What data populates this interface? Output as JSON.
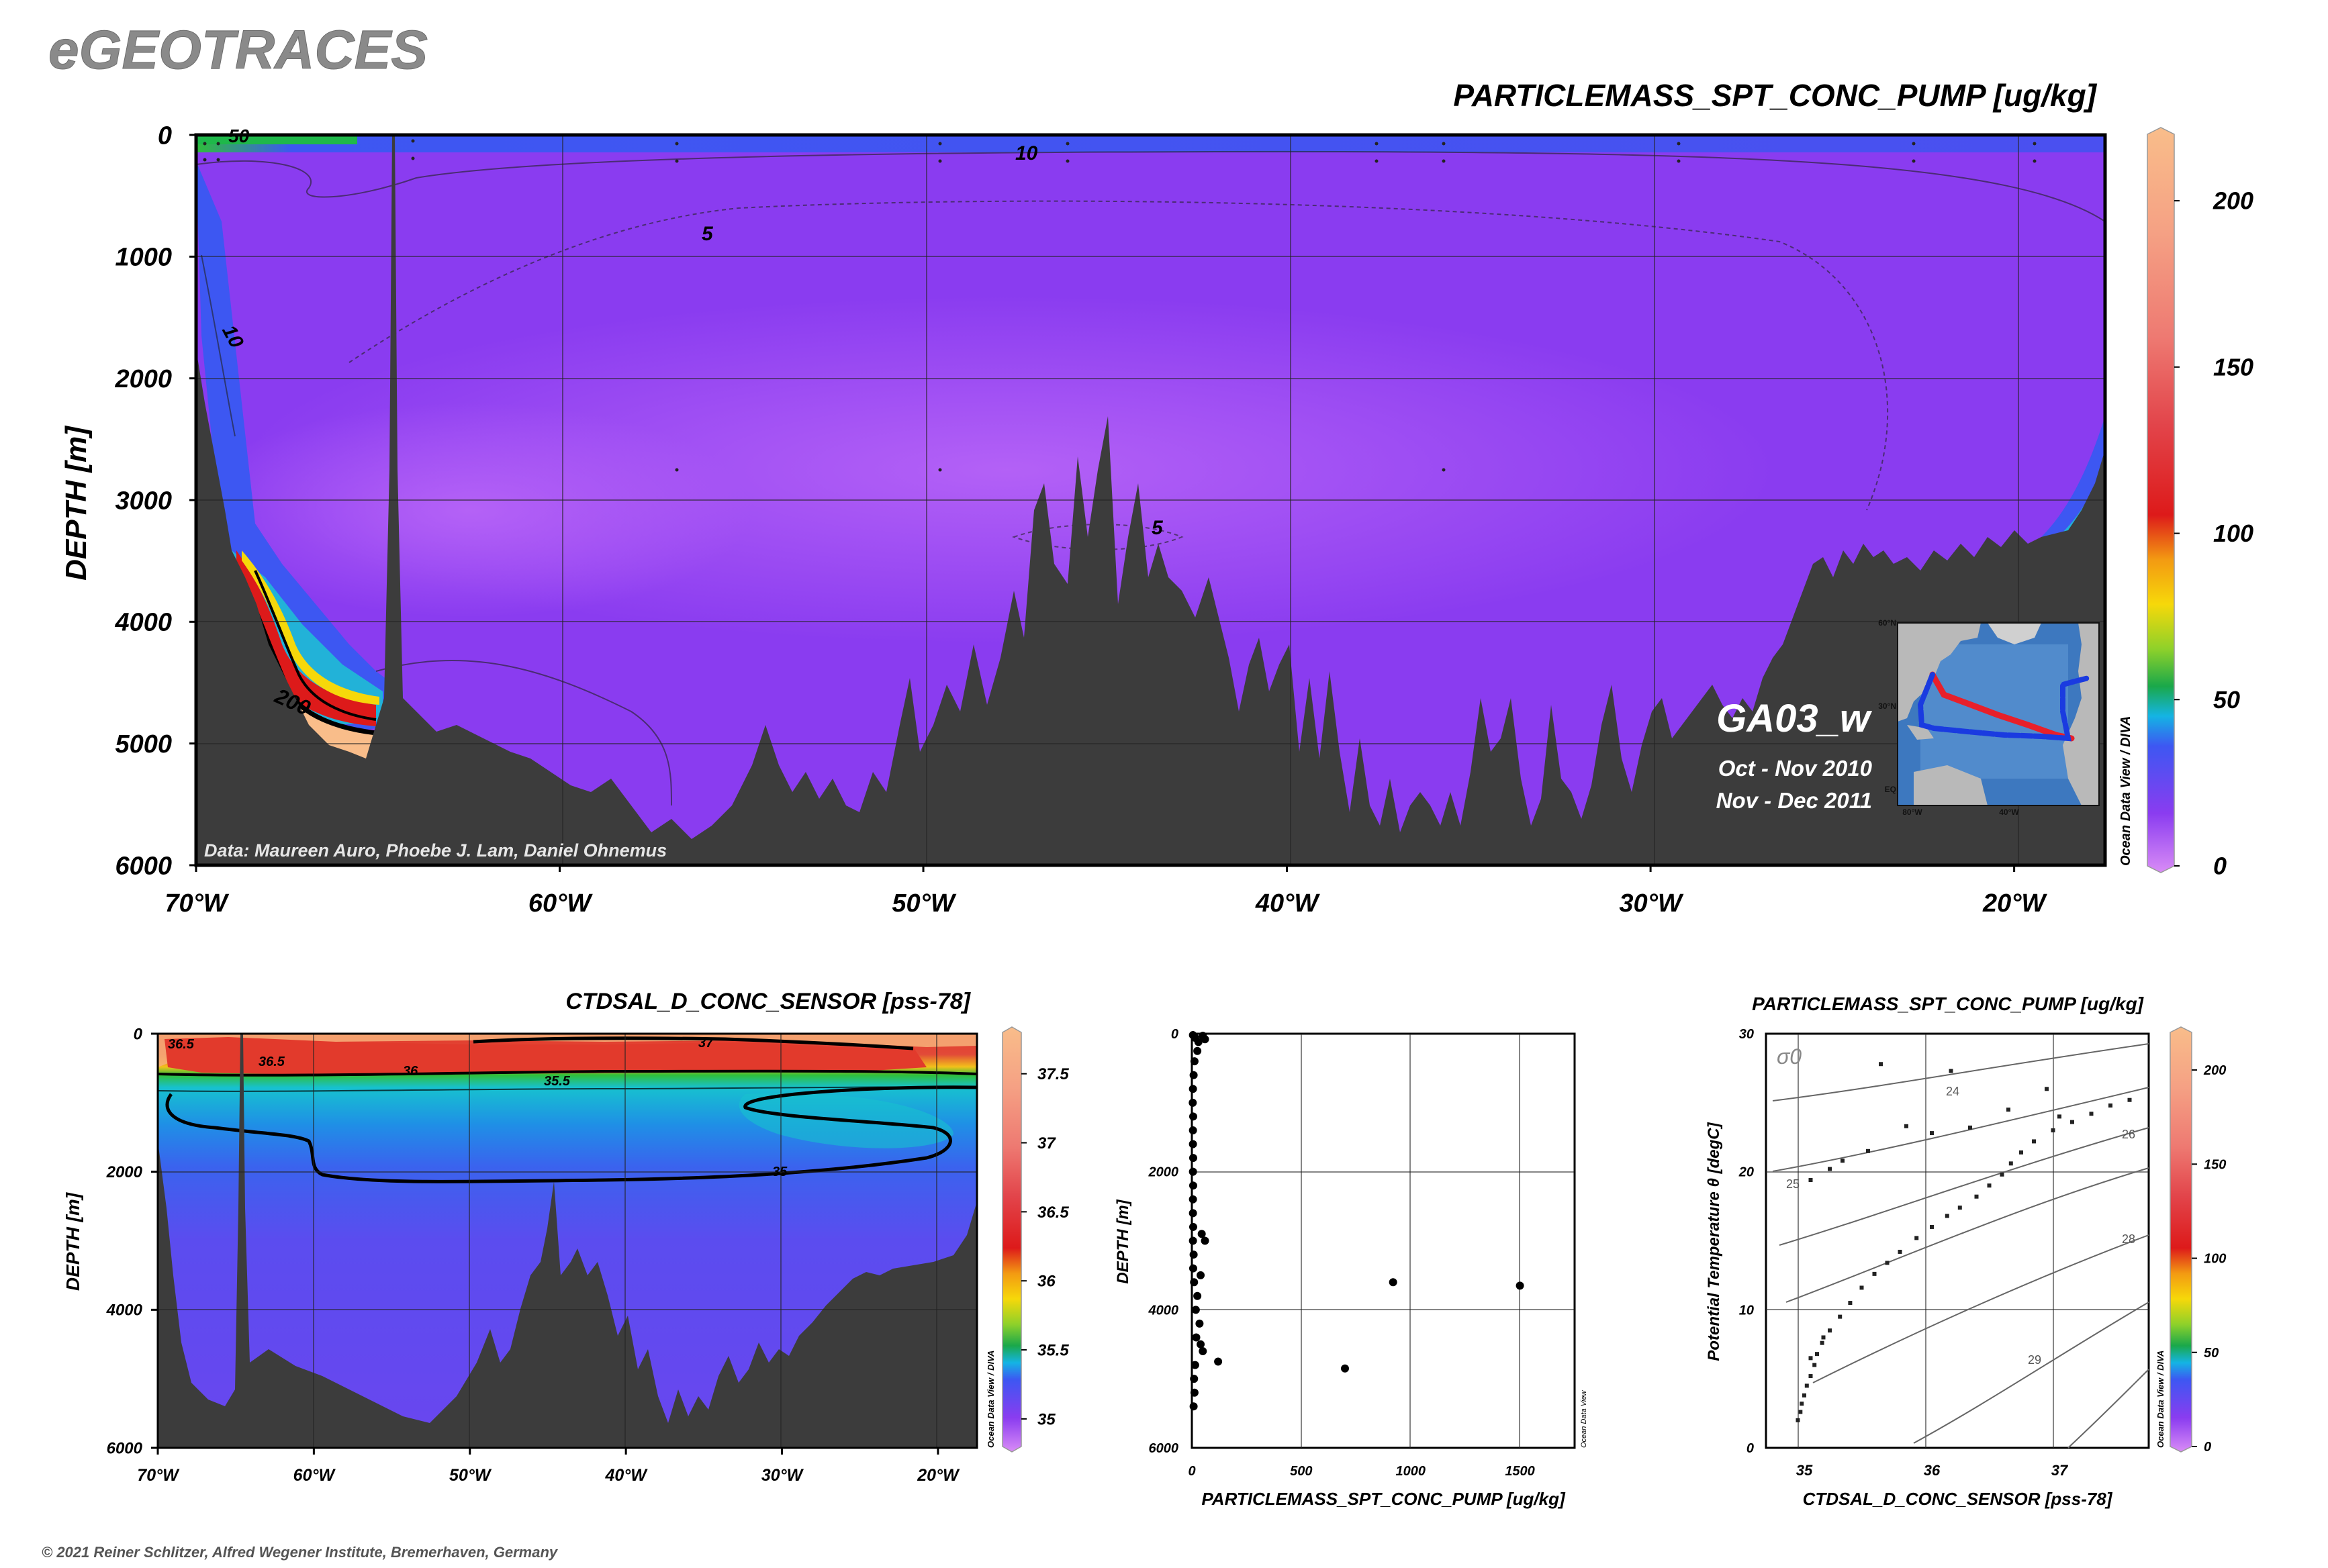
{
  "app_title": "eGEOTRACES",
  "copyright": "© 2021 Reiner Schlitzer, Alfred Wegener Institute, Bremerhaven, Germany",
  "watermark": "Ocean Data View / DIVA",
  "watermark_short": "Ocean Data View",
  "colors": {
    "land": "#3c3c3c",
    "ocean_base": "#8a3cf0",
    "ocean_light": "#a24ff5",
    "cruise_red": "#e8202a",
    "cruise_blue": "#1a3be0"
  },
  "chart_data": [
    {
      "type": "heatmap",
      "title": "PARTICLEMASS_SPT_CONC_PUMP [ug/kg]",
      "xlabel": "",
      "ylabel": "DEPTH [m]",
      "x_ticks": [
        "70°W",
        "60°W",
        "50°W",
        "40°W",
        "30°W",
        "20°W"
      ],
      "x_tick_values": [
        -70,
        -60,
        -50,
        -40,
        -30,
        -20
      ],
      "xlim": [
        -70,
        -17.5
      ],
      "y_ticks": [
        "0",
        "1000",
        "2000",
        "3000",
        "4000",
        "5000",
        "6000"
      ],
      "y_tick_values": [
        0,
        1000,
        2000,
        3000,
        4000,
        5000,
        6000
      ],
      "ylim": [
        6000,
        0
      ],
      "colorbar": {
        "ticks": [
          "0",
          "50",
          "100",
          "150",
          "200"
        ],
        "tick_values": [
          0,
          50,
          100,
          150,
          200
        ],
        "range": [
          0,
          220
        ]
      },
      "contour_labels": [
        "50",
        "10",
        "5",
        "10",
        "5",
        "200"
      ],
      "credit": "Data: Maureen Auro, Phoebe J. Lam, Daniel Ohnemus",
      "section_name": "GA03_w",
      "dates": [
        "Oct - Nov 2010",
        "Nov - Dec 2011"
      ],
      "inset_map": {
        "lat_labels": [
          "60°N",
          "30°N",
          "EQ"
        ],
        "lon_labels": [
          "80°W",
          "40°W"
        ]
      }
    },
    {
      "type": "heatmap",
      "title": "CTDSAL_D_CONC_SENSOR [pss-78]",
      "ylabel": "DEPTH [m]",
      "x_ticks": [
        "70°W",
        "60°W",
        "50°W",
        "40°W",
        "30°W",
        "20°W"
      ],
      "x_tick_values": [
        -70,
        -60,
        -50,
        -40,
        -30,
        -20
      ],
      "xlim": [
        -70,
        -17.5
      ],
      "y_ticks": [
        "0",
        "2000",
        "4000",
        "6000"
      ],
      "y_tick_values": [
        0,
        2000,
        4000,
        6000
      ],
      "ylim": [
        6000,
        0
      ],
      "colorbar": {
        "ticks": [
          "35",
          "35.5",
          "36",
          "36.5",
          "37",
          "37.5"
        ],
        "tick_values": [
          35,
          35.5,
          36,
          36.5,
          37,
          37.5
        ],
        "range": [
          34.8,
          37.8
        ]
      },
      "contour_labels": [
        "36.5",
        "37",
        "36.5",
        "36",
        "35.5",
        "35"
      ]
    },
    {
      "type": "scatter",
      "title": "",
      "xlabel": "PARTICLEMASS_SPT_CONC_PUMP [ug/kg]",
      "ylabel": "DEPTH [m]",
      "x_ticks": [
        "0",
        "500",
        "1000",
        "1500"
      ],
      "x_tick_values": [
        0,
        500,
        1000,
        1500
      ],
      "xlim": [
        0,
        1750
      ],
      "y_ticks": [
        "0",
        "2000",
        "4000",
        "6000"
      ],
      "y_tick_values": [
        0,
        2000,
        4000,
        6000
      ],
      "ylim": [
        6000,
        0
      ],
      "points": [
        {
          "x": 5,
          "y": 20
        },
        {
          "x": 15,
          "y": 60
        },
        {
          "x": 30,
          "y": 120
        },
        {
          "x": 50,
          "y": 30
        },
        {
          "x": 60,
          "y": 80
        },
        {
          "x": 25,
          "y": 250
        },
        {
          "x": 12,
          "y": 400
        },
        {
          "x": 8,
          "y": 600
        },
        {
          "x": 5,
          "y": 800
        },
        {
          "x": 4,
          "y": 1000
        },
        {
          "x": 6,
          "y": 1200
        },
        {
          "x": 5,
          "y": 1400
        },
        {
          "x": 5,
          "y": 1600
        },
        {
          "x": 6,
          "y": 1800
        },
        {
          "x": 5,
          "y": 2000
        },
        {
          "x": 6,
          "y": 2200
        },
        {
          "x": 5,
          "y": 2400
        },
        {
          "x": 5,
          "y": 2600
        },
        {
          "x": 6,
          "y": 2800
        },
        {
          "x": 5,
          "y": 3000
        },
        {
          "x": 8,
          "y": 3200
        },
        {
          "x": 6,
          "y": 3400
        },
        {
          "x": 10,
          "y": 3600
        },
        {
          "x": 25,
          "y": 3800
        },
        {
          "x": 40,
          "y": 3500
        },
        {
          "x": 45,
          "y": 2900
        },
        {
          "x": 60,
          "y": 3000
        },
        {
          "x": 18,
          "y": 4000
        },
        {
          "x": 35,
          "y": 4200
        },
        {
          "x": 20,
          "y": 4400
        },
        {
          "x": 40,
          "y": 4500
        },
        {
          "x": 50,
          "y": 4600
        },
        {
          "x": 15,
          "y": 4800
        },
        {
          "x": 10,
          "y": 5000
        },
        {
          "x": 12,
          "y": 5200
        },
        {
          "x": 8,
          "y": 5400
        },
        {
          "x": 120,
          "y": 4750
        },
        {
          "x": 700,
          "y": 4850
        },
        {
          "x": 920,
          "y": 3600
        },
        {
          "x": 1500,
          "y": 3650
        }
      ]
    },
    {
      "type": "scatter",
      "title": "PARTICLEMASS_SPT_CONC_PUMP [ug/kg]",
      "xlabel": "CTDSAL_D_CONC_SENSOR [pss-78]",
      "ylabel": "Potential Temperature θ [degC]",
      "x_ticks": [
        "35",
        "36",
        "37"
      ],
      "x_tick_values": [
        35,
        36,
        37
      ],
      "xlim": [
        34.7,
        37.7
      ],
      "y_ticks": [
        "0",
        "10",
        "20",
        "30"
      ],
      "y_tick_values": [
        0,
        10,
        20,
        30
      ],
      "ylim": [
        0,
        30
      ],
      "density_label": "σ0",
      "isopycnal_labels": [
        "24",
        "25",
        "26",
        "28",
        "29"
      ],
      "colorbar": {
        "ticks": [
          "0",
          "50",
          "100",
          "150",
          "200"
        ],
        "tick_values": [
          0,
          50,
          100,
          150,
          200
        ],
        "range": [
          0,
          220
        ]
      },
      "points": [
        {
          "x": 34.95,
          "y": 2.0
        },
        {
          "x": 34.97,
          "y": 2.6
        },
        {
          "x": 34.98,
          "y": 3.2
        },
        {
          "x": 35.0,
          "y": 3.8
        },
        {
          "x": 35.02,
          "y": 4.5
        },
        {
          "x": 35.05,
          "y": 5.2
        },
        {
          "x": 35.08,
          "y": 6.0
        },
        {
          "x": 35.1,
          "y": 6.8
        },
        {
          "x": 35.14,
          "y": 7.6
        },
        {
          "x": 35.2,
          "y": 8.5
        },
        {
          "x": 35.28,
          "y": 9.5
        },
        {
          "x": 35.36,
          "y": 10.5
        },
        {
          "x": 35.45,
          "y": 11.6
        },
        {
          "x": 35.55,
          "y": 12.6
        },
        {
          "x": 35.65,
          "y": 13.4
        },
        {
          "x": 35.75,
          "y": 14.2
        },
        {
          "x": 35.88,
          "y": 15.2
        },
        {
          "x": 36.0,
          "y": 16.0
        },
        {
          "x": 36.12,
          "y": 16.8
        },
        {
          "x": 36.22,
          "y": 17.4
        },
        {
          "x": 36.35,
          "y": 18.2
        },
        {
          "x": 36.45,
          "y": 19.0
        },
        {
          "x": 36.55,
          "y": 19.8
        },
        {
          "x": 36.62,
          "y": 20.6
        },
        {
          "x": 36.7,
          "y": 21.4
        },
        {
          "x": 36.8,
          "y": 22.2
        },
        {
          "x": 36.95,
          "y": 23.0
        },
        {
          "x": 37.1,
          "y": 23.6
        },
        {
          "x": 37.25,
          "y": 24.2
        },
        {
          "x": 37.4,
          "y": 24.8
        },
        {
          "x": 37.55,
          "y": 25.2
        },
        {
          "x": 36.6,
          "y": 24.5
        },
        {
          "x": 36.3,
          "y": 23.2
        },
        {
          "x": 36.0,
          "y": 22.8
        },
        {
          "x": 35.8,
          "y": 23.3
        },
        {
          "x": 35.5,
          "y": 21.5
        },
        {
          "x": 35.3,
          "y": 20.8
        },
        {
          "x": 35.2,
          "y": 20.2
        },
        {
          "x": 35.05,
          "y": 19.4
        },
        {
          "x": 35.6,
          "y": 27.8
        },
        {
          "x": 36.15,
          "y": 27.3
        },
        {
          "x": 36.9,
          "y": 26.0
        },
        {
          "x": 37.0,
          "y": 24.0
        },
        {
          "x": 35.15,
          "y": 8.0
        },
        {
          "x": 35.05,
          "y": 6.5
        }
      ]
    }
  ]
}
